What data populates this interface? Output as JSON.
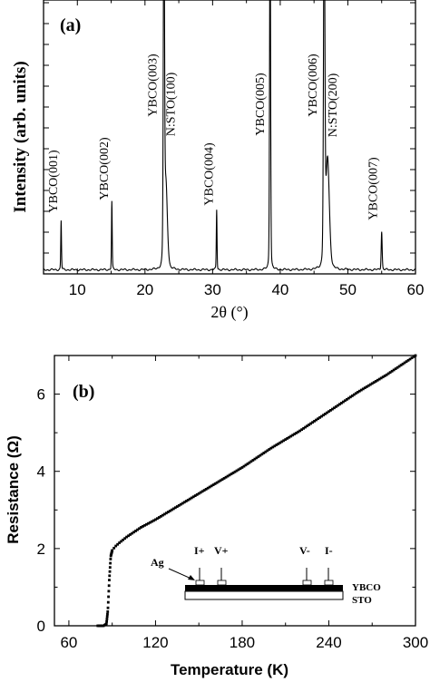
{
  "chart_data": [
    {
      "type": "line",
      "panel_label": "(a)",
      "xlabel": "2θ (°)",
      "ylabel": "Intensity (arb. units)",
      "xlim": [
        5,
        60
      ],
      "ylim": [
        0,
        100
      ],
      "xticks": [
        10,
        20,
        30,
        40,
        50,
        60
      ],
      "y_tick_labels_shown": false,
      "grid": false,
      "peaks": [
        {
          "x": 7.6,
          "height": 18,
          "width": 0.22,
          "label": "YBCO(001)"
        },
        {
          "x": 15.1,
          "height": 25,
          "width": 0.22,
          "label": "YBCO(002)"
        },
        {
          "x": 22.8,
          "height": 140,
          "width": 0.35,
          "label": "YBCO(003)"
        },
        {
          "x": 23.1,
          "height": 30,
          "width": 0.9,
          "label": "N:STO(100)"
        },
        {
          "x": 30.6,
          "height": 22,
          "width": 0.22,
          "label": "YBCO(004)"
        },
        {
          "x": 38.5,
          "height": 140,
          "width": 0.3,
          "label": "YBCO(005)"
        },
        {
          "x": 46.5,
          "height": 140,
          "width": 0.4,
          "label": "YBCO(006)"
        },
        {
          "x": 47.0,
          "height": 40,
          "width": 1.1,
          "label": "N:STO(200)"
        },
        {
          "x": 55.0,
          "height": 14,
          "width": 0.3,
          "label": "YBCO(007)"
        }
      ],
      "baseline": 1.5
    },
    {
      "type": "scatter",
      "panel_label": "(b)",
      "xlabel": "Temperature (K)",
      "ylabel": "Resistance (Ω)",
      "xlim": [
        50,
        300
      ],
      "ylim": [
        0,
        7
      ],
      "xticks": [
        60,
        120,
        180,
        240,
        300
      ],
      "yticks": [
        0,
        2,
        4,
        6
      ],
      "grid": false,
      "series": [
        {
          "x": [
            80,
            84,
            86,
            87,
            88,
            89,
            90,
            92,
            95,
            100,
            110,
            120,
            140,
            160,
            180,
            200,
            220,
            240,
            260,
            280,
            300
          ],
          "y": [
            0,
            0,
            0.05,
            0.4,
            1.2,
            1.8,
            1.95,
            2.05,
            2.15,
            2.3,
            2.55,
            2.75,
            3.2,
            3.65,
            4.1,
            4.6,
            5.05,
            5.55,
            6.05,
            6.5,
            7.0
          ]
        }
      ],
      "inset": {
        "labels": {
          "ag": "Ag",
          "i_plus": "I+",
          "v_plus": "V+",
          "v_minus": "V-",
          "i_minus": "I-",
          "film": "YBCO",
          "substrate": "STO"
        }
      }
    }
  ]
}
